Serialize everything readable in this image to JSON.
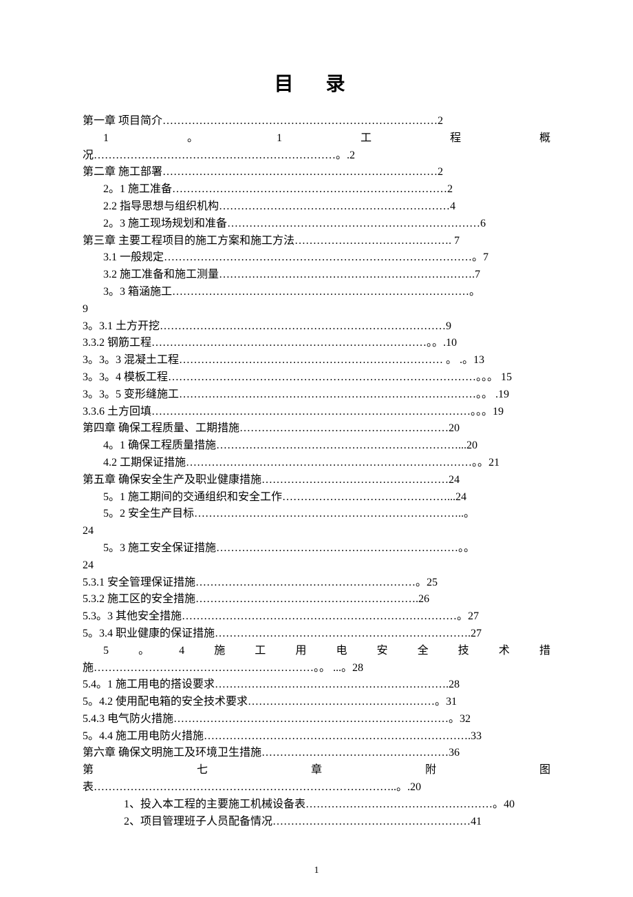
{
  "title": "目   录",
  "page_number": "1",
  "entries": [
    {
      "text": "第一章  项目简介…………………………………………………………………2",
      "indent": 0,
      "justify": false
    },
    {
      "text": "1 。 1 工 程 概",
      "indent": 1,
      "justify": true
    },
    {
      "text": "况…………………………………………………………。.2",
      "indent": 0,
      "justify": false
    },
    {
      "text": "第二章  施工部署…………………………………………………………………2",
      "indent": 0,
      "justify": false
    },
    {
      "text": "2。1  施工准备…………………………………………………………………2",
      "indent": 1,
      "justify": false
    },
    {
      "text": "2.2  指导思想与组织机构………………………………………………………4",
      "indent": 1,
      "justify": false
    },
    {
      "text": "2。3  施工现场规划和准备……………………………………………………………6",
      "indent": 1,
      "justify": false
    },
    {
      "text": "第三章  主要工程项目的施工方案和施工方法……………………………………. 7",
      "indent": 0,
      "justify": false
    },
    {
      "text": "3.1 一般规定…………………………………………………………………………。7",
      "indent": 1,
      "justify": false
    },
    {
      "text": "3.2  施工准备和施工测量…………………………………………………………….7",
      "indent": 1,
      "justify": false
    },
    {
      "text": "3。3 箱涵施工………………………………………………………………………。",
      "indent": 1,
      "justify": false
    },
    {
      "text": "9",
      "indent": 0,
      "justify": false
    },
    {
      "text": "3。3.1 土方开挖……………………………………………………………………9",
      "indent": 0,
      "justify": false
    },
    {
      "text": "3.3.2 钢筋工程…………………………………………………………………。。.10",
      "indent": 0,
      "justify": false
    },
    {
      "text": "3。3。3 混凝土工程……………………………………………………………… 。 .。13",
      "indent": 0,
      "justify": false
    },
    {
      "text": "3。3。4 模板工程…………………………………………………………………………。。。  15",
      "indent": 0,
      "justify": false
    },
    {
      "text": "3。3。5 变形缝施工………………………………………………………………………。。 .19",
      "indent": 0,
      "justify": false
    },
    {
      "text": "3.3.6 土方回填……………………………………………………………………………。。。19",
      "indent": 0,
      "justify": false
    },
    {
      "text": "第四章  确保工程质量、工期措施…………………………………………………20",
      "indent": 0,
      "justify": false
    },
    {
      "text": "4。1 确保工程质量措施…………………………………………………………...20",
      "indent": 1,
      "justify": false
    },
    {
      "text": "4.2 工期保证措施……………………………………………………………………。。21",
      "indent": 1,
      "justify": false
    },
    {
      "text": "第五章  确保安全生产及职业健康措施……………………………………………24",
      "indent": 0,
      "justify": false
    },
    {
      "text": "5。1 施工期间的交通组织和安全工作………………………………………...24",
      "indent": 1,
      "justify": false
    },
    {
      "text": "5。2 安全生产目标………………………………………………………………..。",
      "indent": 1,
      "justify": false
    },
    {
      "text": "24",
      "indent": 0,
      "justify": false
    },
    {
      "text": "5。3 施工安全保证措施…………………………………………………………。。",
      "indent": 1,
      "justify": false
    },
    {
      "text": "24",
      "indent": 0,
      "justify": false
    },
    {
      "text": "5.3.1 安全管理保证措施……………………………………………………。25",
      "indent": 0,
      "justify": false
    },
    {
      "text": "5.3.2 施工区的安全措施…………………………………………………….26",
      "indent": 0,
      "justify": false
    },
    {
      "text": "5.3。3 其他安全措施…………………………………………………………………。27",
      "indent": 0,
      "justify": false
    },
    {
      "text": "5。3.4 职业健康的保证措施…………………………………………………………….27",
      "indent": 0,
      "justify": false
    },
    {
      "text": "5 。 4 施 工 用 电 安 全 技 术 措",
      "indent": 1,
      "justify": true
    },
    {
      "text": "施……………………………………………………。。  ...。28",
      "indent": 0,
      "justify": false
    },
    {
      "text": "5.4。1 施工用电的搭设要求……………………………………………………….28",
      "indent": 0,
      "justify": false
    },
    {
      "text": "5。4.2 使用配电箱的安全技术要求……………………………………………。31",
      "indent": 0,
      "justify": false
    },
    {
      "text": "5.4.3 电气防火措施…………………………………………………………………。32",
      "indent": 0,
      "justify": false
    },
    {
      "text": "5。4.4 施工用电防火措施……………………………………………………………….33",
      "indent": 0,
      "justify": false
    },
    {
      "text": "第六章  确保文明施工及环境卫生措施……………………………………………36",
      "indent": 0,
      "justify": false
    },
    {
      "text": "第 七 章 附 图",
      "indent": 0,
      "justify": true
    },
    {
      "text": "表………………………………………………………………………..。.20",
      "indent": 0,
      "justify": false
    },
    {
      "text": "1、投入本工程的主要施工机械设备表……………………………………………。40",
      "indent": 2,
      "justify": false
    },
    {
      "text": "2、项目管理班子人员配备情况………………………………………………41",
      "indent": 2,
      "justify": false
    }
  ]
}
